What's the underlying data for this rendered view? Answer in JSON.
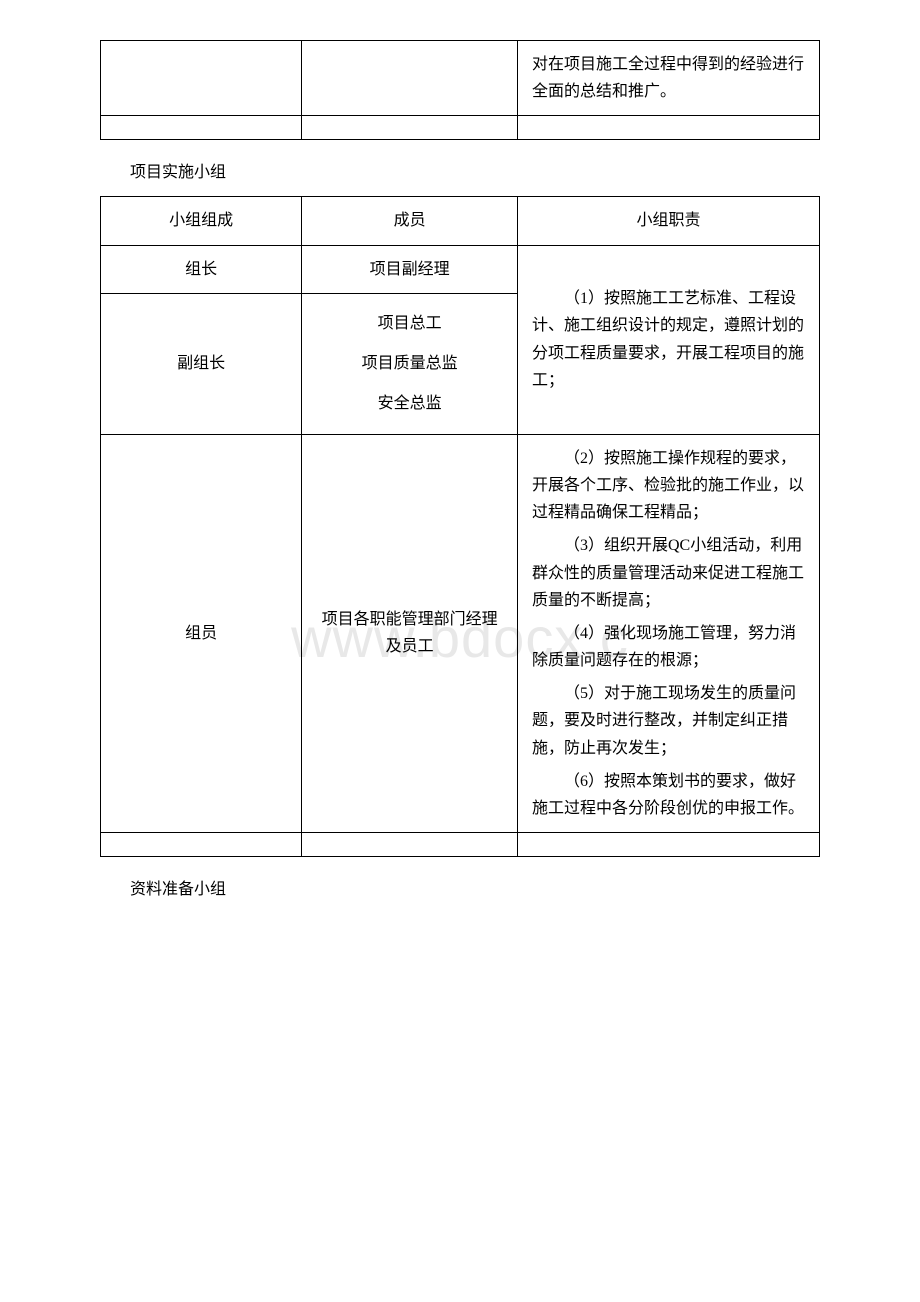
{
  "watermark": "www.bdocx.c",
  "table1": {
    "remainder_text": "对在项目施工全过程中得到的经验进行全面的总结和推广。"
  },
  "section1_title": "项目实施小组",
  "table2": {
    "headers": {
      "col1": "小组组成",
      "col2": "成员",
      "col3": "小组职责"
    },
    "row1": {
      "col1": "组长",
      "col2": "项目副经理"
    },
    "row2": {
      "col1": "副组长",
      "col2_line1": "项目总工",
      "col2_line2": "项目质量总监",
      "col2_line3": "安全总监"
    },
    "duty_part1": "（1）按照施工工艺标准、工程设计、施工组织设计的规定，遵照计划的分项工程质量要求，开展工程项目的施工；",
    "row3": {
      "col1": "组员",
      "col2": "项目各职能管理部门经理及员工"
    },
    "duty_p2": "（2）按照施工操作规程的要求，开展各个工序、检验批的施工作业，以过程精品确保工程精品；",
    "duty_p3": "（3）组织开展QC小组活动，利用群众性的质量管理活动来促进工程施工质量的不断提高；",
    "duty_p4": "（4）强化现场施工管理，努力消除质量问题存在的根源；",
    "duty_p5": "（5）对于施工现场发生的质量问题，要及时进行整改，并制定纠正措施，防止再次发生；",
    "duty_p6": "（6）按照本策划书的要求，做好施工过程中各分阶段创优的申报工作。"
  },
  "section2_title": "资料准备小组"
}
